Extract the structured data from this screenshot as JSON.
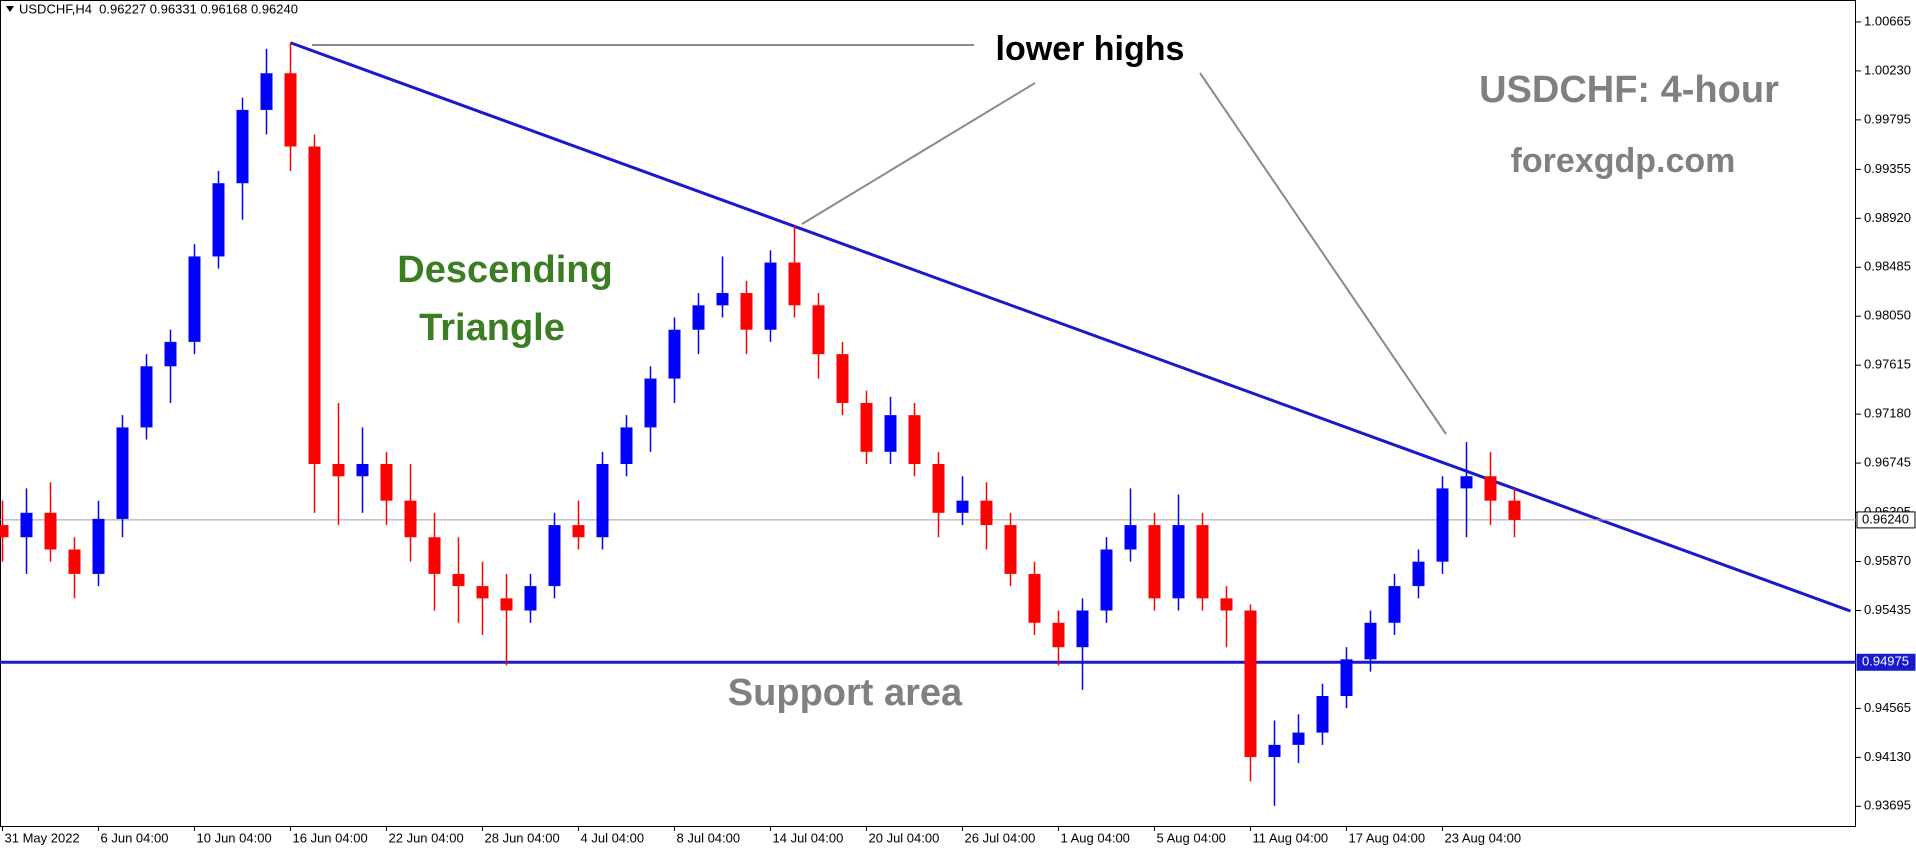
{
  "chart_data": {
    "type": "candlestick",
    "header": "USDCHF,H4  0.96227 0.96331 0.96168 0.96240",
    "title": "USDCHF: 4-hour",
    "source": "forexgdp.com",
    "pattern_label": [
      "Descending",
      "Triangle"
    ],
    "highs_label": "lower highs",
    "support_label": "Support area",
    "up_color": "#0000ff",
    "down_color": "#ff0000",
    "categories": [
      "31 May 2022",
      null,
      null,
      null,
      "6 Jun 04:00",
      null,
      null,
      null,
      "10 Jun 04:00",
      null,
      null,
      null,
      "16 Jun 04:00",
      null,
      null,
      null,
      "22 Jun 04:00",
      null,
      null,
      null,
      "28 Jun 04:00",
      null,
      null,
      null,
      "4 Jul 04:00",
      null,
      null,
      null,
      "8 Jul 04:00",
      null,
      null,
      null,
      "14 Jul 04:00",
      null,
      null,
      null,
      "20 Jul 04:00",
      null,
      null,
      null,
      "26 Jul 04:00",
      null,
      null,
      null,
      "1 Aug 04:00",
      null,
      null,
      null,
      "5 Aug 04:00",
      null,
      null,
      null,
      "11 Aug 04:00",
      null,
      null,
      null,
      "17 Aug 04:00",
      null,
      null,
      null,
      "23 Aug 04:00",
      null,
      null,
      null
    ],
    "open": [
      0.96194,
      0.96086,
      0.96303,
      0.95977,
      0.9576,
      0.96249,
      0.97062,
      0.97605,
      0.97822,
      0.98581,
      0.99232,
      0.99883,
      1.00209,
      0.99558,
      0.96737,
      0.96628,
      0.96737,
      0.96411,
      0.96086,
      0.9576,
      0.95652,
      0.95543,
      0.95435,
      0.95652,
      0.96194,
      0.96086,
      0.96737,
      0.97062,
      0.97496,
      0.9793,
      0.98147,
      0.98256,
      0.9793,
      0.98527,
      0.98147,
      0.97713,
      0.97279,
      0.96845,
      0.97171,
      0.96737,
      0.96303,
      0.96411,
      0.96194,
      0.9576,
      0.95326,
      0.95109,
      0.95435,
      0.95977,
      0.96194,
      0.95543,
      0.96194,
      0.95543,
      0.95435,
      0.94133,
      0.94241,
      0.9435,
      0.94675,
      0.95001,
      0.95326,
      0.95652,
      0.95869,
      0.9652,
      0.96628,
      0.96411
    ],
    "high": [
      0.96411,
      0.9652,
      0.96574,
      0.96086,
      0.96411,
      0.97171,
      0.97713,
      0.9793,
      0.9869,
      0.99341,
      0.99992,
      1.00426,
      1.0048,
      0.99666,
      0.97279,
      0.97062,
      0.96845,
      0.96737,
      0.96303,
      0.96086,
      0.95869,
      0.9576,
      0.9576,
      0.96303,
      0.96411,
      0.96845,
      0.97171,
      0.97605,
      0.98039,
      0.98256,
      0.98581,
      0.98364,
      0.98636,
      0.98853,
      0.98256,
      0.97822,
      0.97388,
      0.97334,
      0.97279,
      0.96845,
      0.96628,
      0.96574,
      0.96303,
      0.95869,
      0.95435,
      0.95543,
      0.96086,
      0.9652,
      0.96303,
      0.96466,
      0.96303,
      0.95652,
      0.95489,
      0.94458,
      0.94513,
      0.94784,
      0.95109,
      0.95435,
      0.9576,
      0.95977,
      0.96628,
      0.96932,
      0.96845,
      0.9652
    ],
    "low": [
      0.95869,
      0.9576,
      0.95869,
      0.95543,
      0.95652,
      0.96086,
      0.96954,
      0.97279,
      0.97713,
      0.98473,
      0.98907,
      0.99666,
      0.99341,
      0.96303,
      0.96194,
      0.96303,
      0.96194,
      0.95869,
      0.95435,
      0.95326,
      0.95218,
      0.94947,
      0.95326,
      0.95543,
      0.95977,
      0.95977,
      0.96628,
      0.96845,
      0.97279,
      0.97713,
      0.98039,
      0.97713,
      0.97822,
      0.98039,
      0.97496,
      0.97171,
      0.96737,
      0.96737,
      0.96628,
      0.96086,
      0.96194,
      0.95977,
      0.95652,
      0.95218,
      0.94947,
      0.9473,
      0.95326,
      0.95869,
      0.95435,
      0.95435,
      0.95435,
      0.95109,
      0.93916,
      0.93699,
      0.94079,
      0.94241,
      0.94567,
      0.94892,
      0.95218,
      0.95543,
      0.9576,
      0.96086,
      0.96194,
      0.96086
    ],
    "close": [
      0.96086,
      0.96303,
      0.95977,
      0.9576,
      0.96249,
      0.97062,
      0.97605,
      0.97822,
      0.98581,
      0.99232,
      0.99883,
      1.00209,
      0.99558,
      0.96737,
      0.96628,
      0.96737,
      0.96411,
      0.96086,
      0.9576,
      0.95652,
      0.95543,
      0.95435,
      0.95652,
      0.96194,
      0.96086,
      0.96737,
      0.97062,
      0.97496,
      0.9793,
      0.98147,
      0.98256,
      0.9793,
      0.98527,
      0.98147,
      0.97713,
      0.97279,
      0.96845,
      0.97171,
      0.96737,
      0.96303,
      0.96411,
      0.96194,
      0.9576,
      0.95326,
      0.95109,
      0.95435,
      0.95977,
      0.96194,
      0.95543,
      0.96194,
      0.95543,
      0.95435,
      0.94133,
      0.94241,
      0.9435,
      0.94675,
      0.95001,
      0.95326,
      0.95652,
      0.95869,
      0.9652,
      0.96628,
      0.96411,
      0.9624
    ],
    "ylim": [
      0.9352,
      1.0086
    ],
    "yticks": [
      1.00665,
      {
        "value": 1.0023,
        "label": "1.00230"
      },
      0.99795,
      0.99355,
      {
        "value": 0.9892,
        "label": "0.98920"
      },
      0.98485,
      {
        "value": 0.9805,
        "label": "0.98050"
      },
      0.97615,
      {
        "value": 0.9718,
        "label": "0.97180"
      },
      0.96745,
      0.96305,
      {
        "value": 0.9587,
        "label": "0.95870"
      },
      0.95435,
      0.94565,
      {
        "value": 0.9413,
        "label": "0.94130"
      },
      0.93695
    ],
    "trendline": {
      "color": "#1a1acd",
      "points": [
        [
          12,
          1.0048
        ],
        [
          77,
          0.9543
        ]
      ]
    },
    "support_level": {
      "value": 0.94975,
      "label": "0.94975",
      "color": "#1a1acd"
    },
    "current_price": {
      "value": 0.9624,
      "label": "0.96240"
    }
  }
}
